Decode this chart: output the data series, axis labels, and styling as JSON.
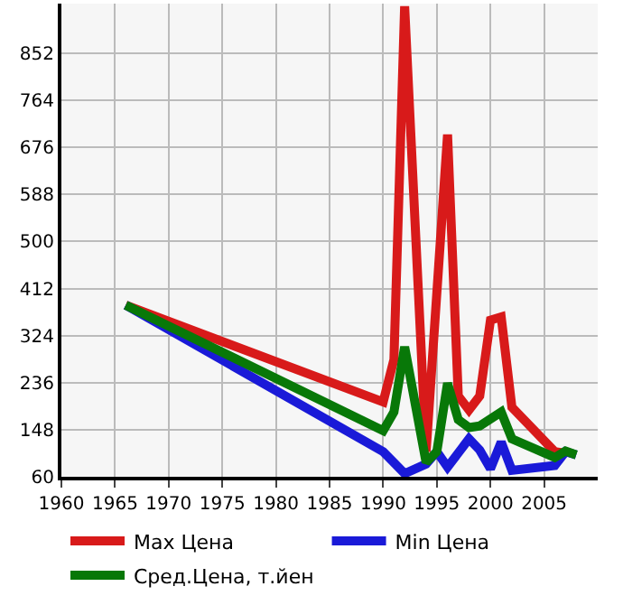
{
  "chart_data": {
    "type": "line",
    "xlim": [
      1960,
      2010
    ],
    "xticks": [
      1960,
      1965,
      1970,
      1975,
      1980,
      1985,
      1990,
      1995,
      2000,
      2005
    ],
    "ylim": [
      60,
      945
    ],
    "yticks": [
      60,
      148,
      236,
      324,
      412,
      500,
      588,
      676,
      764,
      852
    ],
    "grid": true,
    "legend": "bottom",
    "marker": "none",
    "line_style": "solid",
    "series": [
      {
        "name": "Max Цена",
        "color": "#d81a1a",
        "x": [
          1966,
          1990,
          1991,
          1992,
          1994,
          1996,
          1997,
          1998,
          1999,
          2000,
          2001,
          2002,
          2006,
          2007
        ],
        "values": [
          381,
          200,
          279,
          940,
          107,
          700,
          211,
          185,
          211,
          353,
          359,
          190,
          107,
          104
        ]
      },
      {
        "name": "Min Цена",
        "color": "#1a1ad8",
        "x": [
          1966,
          1990,
          1992,
          1994,
          1995,
          1996,
          1998,
          1999,
          2000,
          2001,
          2002,
          2006,
          2007,
          2008
        ],
        "values": [
          381,
          107,
          66,
          84,
          107,
          78,
          131,
          110,
          75,
          125,
          72,
          81,
          107,
          101
        ]
      },
      {
        "name": "Сред.Цена, т.йен",
        "color": "#087808",
        "x": [
          1966,
          1990,
          1991,
          1992,
          1994,
          1995,
          1996,
          1997,
          1998,
          1999,
          2001,
          2002,
          2006,
          2007,
          2008
        ],
        "values": [
          381,
          146,
          181,
          303,
          87,
          107,
          235,
          167,
          152,
          155,
          181,
          131,
          96,
          108,
          101
        ]
      }
    ]
  }
}
